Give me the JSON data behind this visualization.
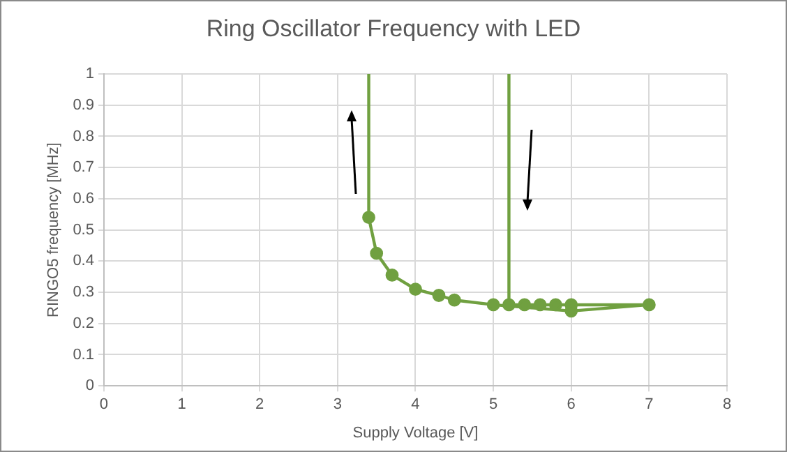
{
  "chart_data": {
    "type": "line",
    "title": "Ring Oscillator Frequency with LED",
    "xlabel": "Supply Voltage [V]",
    "ylabel": "RINGO5 frequency [MHz]",
    "xlim": [
      0,
      8
    ],
    "xticks": [
      0,
      1,
      2,
      3,
      4,
      5,
      6,
      7,
      8
    ],
    "ylim": [
      0,
      1
    ],
    "yticks": [
      0,
      0.1,
      0.2,
      0.3,
      0.4,
      0.5,
      0.6,
      0.7,
      0.8,
      0.9,
      1
    ],
    "grid": true,
    "legend": false,
    "line_style": "solid",
    "series": [
      {
        "color": "#70a040",
        "marker": "circle",
        "x": [
          5.2,
          5.4,
          5.6,
          5.8,
          6.0,
          7.0,
          6.0,
          5.0,
          4.5,
          4.3,
          4.0,
          3.7,
          3.5,
          3.4
        ],
        "values": [
          0.26,
          0.26,
          0.26,
          0.26,
          0.26,
          0.26,
          0.24,
          0.26,
          0.275,
          0.29,
          0.31,
          0.355,
          0.425,
          0.54
        ]
      },
      {
        "color": "#70a040",
        "marker": "none",
        "x": [
          5.2,
          5.2
        ],
        "values": [
          1,
          0.26
        ]
      },
      {
        "color": "#70a040",
        "marker": "none",
        "x": [
          3.4,
          3.4
        ],
        "values": [
          0.54,
          1
        ]
      }
    ]
  }
}
